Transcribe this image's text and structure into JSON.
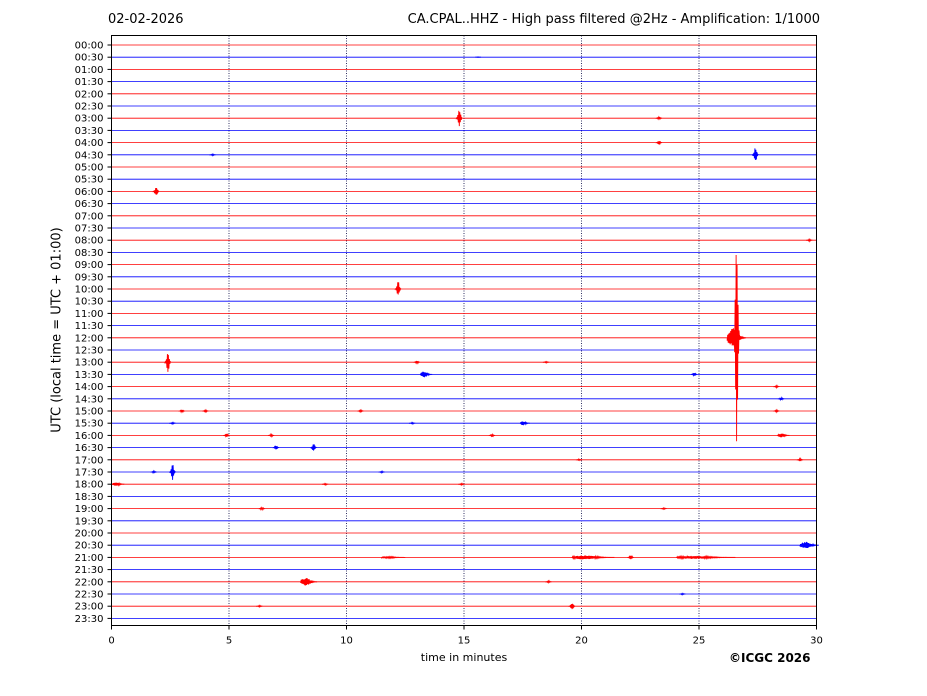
{
  "header": {
    "date": "02-02-2026",
    "title": "CA.CPAL..HHZ - High pass filtered @2Hz - Amplification: 1/1000"
  },
  "footer": {
    "copyright": "©ICGC 2026"
  },
  "chart_data": {
    "type": "line",
    "title": "CA.CPAL..HHZ - High pass filtered @2Hz - Amplification: 1/1000",
    "xlabel": "time in minutes",
    "ylabel": "UTC (local time = UTC + 01:00)",
    "xlim": [
      0,
      30
    ],
    "x_ticks": [
      0,
      5,
      10,
      15,
      20,
      25,
      30
    ],
    "x_tick_labels": [
      "0",
      "5",
      "10",
      "15",
      "20",
      "25",
      "30"
    ],
    "vertical_grid_at": [
      5,
      10,
      15,
      20,
      25
    ],
    "row_labels": [
      "00:00",
      "00:30",
      "01:00",
      "01:30",
      "02:00",
      "02:30",
      "03:00",
      "03:30",
      "04:00",
      "04:30",
      "05:00",
      "05:30",
      "06:00",
      "06:30",
      "07:00",
      "07:30",
      "08:00",
      "08:30",
      "09:00",
      "09:30",
      "10:00",
      "10:30",
      "11:00",
      "11:30",
      "12:00",
      "12:30",
      "13:00",
      "13:30",
      "14:00",
      "14:30",
      "15:00",
      "15:30",
      "16:00",
      "16:30",
      "17:00",
      "17:30",
      "18:00",
      "18:30",
      "19:00",
      "19:30",
      "20:00",
      "20:30",
      "21:00",
      "21:30",
      "22:00",
      "22:30",
      "23:00",
      "23:30"
    ],
    "colors": {
      "even_rows": "#ff0000",
      "odd_rows": "#0000ff"
    },
    "events": [
      {
        "row": "00:30",
        "minute": 15.6,
        "amp": 0.3
      },
      {
        "row": "03:00",
        "minute": 14.8,
        "amp": 10
      },
      {
        "row": "03:00",
        "minute": 23.3,
        "amp": 1.5
      },
      {
        "row": "04:00",
        "minute": 23.3,
        "amp": 2
      },
      {
        "row": "04:30",
        "minute": 4.3,
        "amp": 0.8
      },
      {
        "row": "04:30",
        "minute": 27.4,
        "amp": 8
      },
      {
        "row": "06:00",
        "minute": 1.9,
        "amp": 5
      },
      {
        "row": "08:00",
        "minute": 29.7,
        "amp": 1
      },
      {
        "row": "10:00",
        "minute": 12.2,
        "amp": 8
      },
      {
        "row": "12:00",
        "minute": 26.6,
        "amp": 130
      },
      {
        "row": "12:00",
        "minute": 26.6,
        "amp": 10,
        "spread": 0.8
      },
      {
        "row": "13:00",
        "minute": 2.4,
        "amp": 10
      },
      {
        "row": "13:00",
        "minute": 13.0,
        "amp": 1.5
      },
      {
        "row": "13:00",
        "minute": 18.5,
        "amp": 0.8
      },
      {
        "row": "13:30",
        "minute": 13.4,
        "amp": 3,
        "spread": 0.5
      },
      {
        "row": "13:30",
        "minute": 24.8,
        "amp": 2
      },
      {
        "row": "14:00",
        "minute": 28.3,
        "amp": 1
      },
      {
        "row": "14:30",
        "minute": 28.5,
        "amp": 1.5
      },
      {
        "row": "15:00",
        "minute": 3.0,
        "amp": 1.5
      },
      {
        "row": "15:00",
        "minute": 4.0,
        "amp": 1.2
      },
      {
        "row": "15:00",
        "minute": 10.6,
        "amp": 1.2
      },
      {
        "row": "15:00",
        "minute": 28.3,
        "amp": 1.2
      },
      {
        "row": "15:30",
        "minute": 2.6,
        "amp": 1
      },
      {
        "row": "15:30",
        "minute": 17.6,
        "amp": 2,
        "spread": 0.4
      },
      {
        "row": "15:30",
        "minute": 12.8,
        "amp": 0.8
      },
      {
        "row": "16:00",
        "minute": 4.9,
        "amp": 2
      },
      {
        "row": "16:00",
        "minute": 6.8,
        "amp": 1.2
      },
      {
        "row": "16:00",
        "minute": 16.2,
        "amp": 1.5
      },
      {
        "row": "16:00",
        "minute": 28.6,
        "amp": 2,
        "spread": 0.5
      },
      {
        "row": "16:30",
        "minute": 7.0,
        "amp": 2.5
      },
      {
        "row": "16:30",
        "minute": 8.6,
        "amp": 4
      },
      {
        "row": "17:00",
        "minute": 19.9,
        "amp": 0.8
      },
      {
        "row": "17:00",
        "minute": 29.3,
        "amp": 1.2
      },
      {
        "row": "17:30",
        "minute": 2.6,
        "amp": 8
      },
      {
        "row": "17:30",
        "minute": 1.8,
        "amp": 1
      },
      {
        "row": "17:30",
        "minute": 11.5,
        "amp": 0.8
      },
      {
        "row": "18:00",
        "minute": 0.3,
        "amp": 2,
        "spread": 0.5
      },
      {
        "row": "18:00",
        "minute": 9.1,
        "amp": 0.8
      },
      {
        "row": "18:00",
        "minute": 14.9,
        "amp": 0.8
      },
      {
        "row": "19:00",
        "minute": 6.4,
        "amp": 1.5
      },
      {
        "row": "19:00",
        "minute": 23.5,
        "amp": 0.8
      },
      {
        "row": "20:30",
        "minute": 29.7,
        "amp": 3.5,
        "spread": 0.8
      },
      {
        "row": "21:00",
        "minute": 20.5,
        "amp": 2,
        "spread": 1.8
      },
      {
        "row": "21:00",
        "minute": 22.1,
        "amp": 2.5
      },
      {
        "row": "21:00",
        "minute": 25.3,
        "amp": 1.5,
        "spread": 2.5
      },
      {
        "row": "21:00",
        "minute": 12.0,
        "amp": 0.8,
        "spread": 1
      },
      {
        "row": "22:00",
        "minute": 8.4,
        "amp": 4,
        "spread": 0.7
      },
      {
        "row": "22:00",
        "minute": 18.6,
        "amp": 1
      },
      {
        "row": "22:30",
        "minute": 24.3,
        "amp": 0.8
      },
      {
        "row": "23:00",
        "minute": 19.6,
        "amp": 4
      },
      {
        "row": "23:00",
        "minute": 6.3,
        "amp": 0.8
      }
    ]
  }
}
